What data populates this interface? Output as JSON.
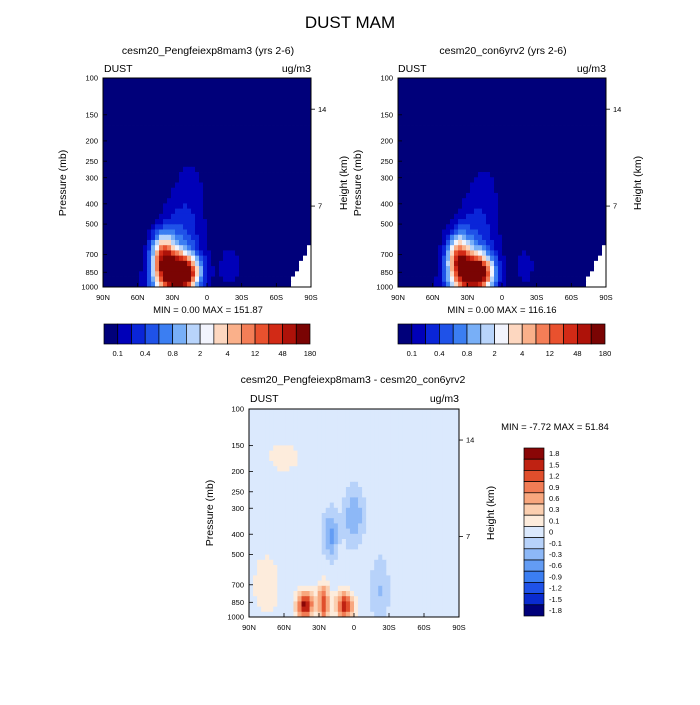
{
  "figure": {
    "title": "DUST MAM"
  },
  "colors": {
    "abs_scale": [
      "#00007a",
      "#0000b8",
      "#0a25d8",
      "#1f52e8",
      "#3b7ef2",
      "#78aff7",
      "#b8d4fb",
      "#f2f4fd",
      "#fdd7c0",
      "#fab08a",
      "#f47e57",
      "#e9512e",
      "#d22a16",
      "#ae1209",
      "#7a0403"
    ],
    "diff_scale": [
      "#00007a",
      "#0a2bcf",
      "#1f52e8",
      "#3b7ef2",
      "#639cf4",
      "#8db8f7",
      "#b7d2fa",
      "#dbe9fd",
      "#fdecdc",
      "#fbcfb0",
      "#f8a77e",
      "#f17c55",
      "#e04e2c",
      "#bf2212",
      "#8a0606"
    ],
    "hatch_missing": "#ffffff"
  },
  "chart_data": [
    {
      "type": "heatmap",
      "title": "cesm20_Pengfeiexp8mam3 (yrs 2-6)",
      "left_label": "DUST",
      "right_label": "ug/m3",
      "ylabel": "Pressure (mb)",
      "ylabel_right": "Height (km)",
      "x_ticks": [
        "90N",
        "60N",
        "30N",
        "0",
        "30S",
        "60S",
        "90S"
      ],
      "y_ticks": [
        "100",
        "150",
        "200",
        "250",
        "300",
        "400",
        "500",
        "700",
        "850",
        "1000"
      ],
      "y_right_ticks": [
        "14",
        "7"
      ],
      "xlim": [
        "90N",
        "90S"
      ],
      "ylim": [
        1000,
        100
      ],
      "y_scale": "log",
      "stats_text": "MIN =   0.00   MAX = 151.87",
      "colorbar": {
        "orientation": "horizontal",
        "tick_labels": [
          "0.1",
          "0.4",
          "0.8",
          "2",
          "4",
          "12",
          "48",
          "180"
        ],
        "levels": [
          0.1,
          0.2,
          0.4,
          0.6,
          0.8,
          1,
          2,
          3,
          4,
          8,
          12,
          24,
          48,
          96,
          180
        ]
      }
    },
    {
      "type": "heatmap",
      "title": "cesm20_con6yrv2 (yrs 2-6)",
      "left_label": "DUST",
      "right_label": "ug/m3",
      "ylabel": "Pressure (mb)",
      "ylabel_right": "Height (km)",
      "x_ticks": [
        "90N",
        "60N",
        "30N",
        "0",
        "30S",
        "60S",
        "90S"
      ],
      "y_ticks": [
        "100",
        "150",
        "200",
        "250",
        "300",
        "400",
        "500",
        "700",
        "850",
        "1000"
      ],
      "y_right_ticks": [
        "14",
        "7"
      ],
      "xlim": [
        "90N",
        "90S"
      ],
      "ylim": [
        1000,
        100
      ],
      "y_scale": "log",
      "stats_text": "MIN =   0.00   MAX = 116.16",
      "colorbar": {
        "orientation": "horizontal",
        "tick_labels": [
          "0.1",
          "0.4",
          "0.8",
          "2",
          "4",
          "12",
          "48",
          "180"
        ],
        "levels": [
          0.1,
          0.2,
          0.4,
          0.6,
          0.8,
          1,
          2,
          3,
          4,
          8,
          12,
          24,
          48,
          96,
          180
        ]
      }
    },
    {
      "type": "heatmap",
      "title": "cesm20_Pengfeiexp8mam3 - cesm20_con6yrv2",
      "left_label": "DUST",
      "right_label": "ug/m3",
      "ylabel": "Pressure (mb)",
      "ylabel_right": "Height (km)",
      "x_ticks": [
        "90N",
        "60N",
        "30N",
        "0",
        "30S",
        "60S",
        "90S"
      ],
      "y_ticks": [
        "100",
        "150",
        "200",
        "250",
        "300",
        "400",
        "500",
        "700",
        "850",
        "1000"
      ],
      "y_right_ticks": [
        "14",
        "7"
      ],
      "xlim": [
        "90N",
        "90S"
      ],
      "ylim": [
        1000,
        100
      ],
      "y_scale": "log",
      "stats_text": "MIN =  -7.72   MAX =  51.84",
      "colorbar": {
        "orientation": "vertical",
        "tick_labels": [
          "1.8",
          "1.5",
          "1.2",
          "0.9",
          "0.6",
          "0.3",
          "0.1",
          "0",
          "-0.1",
          "-0.3",
          "-0.6",
          "-0.9",
          "-1.2",
          "-1.5",
          "-1.8"
        ]
      }
    }
  ]
}
